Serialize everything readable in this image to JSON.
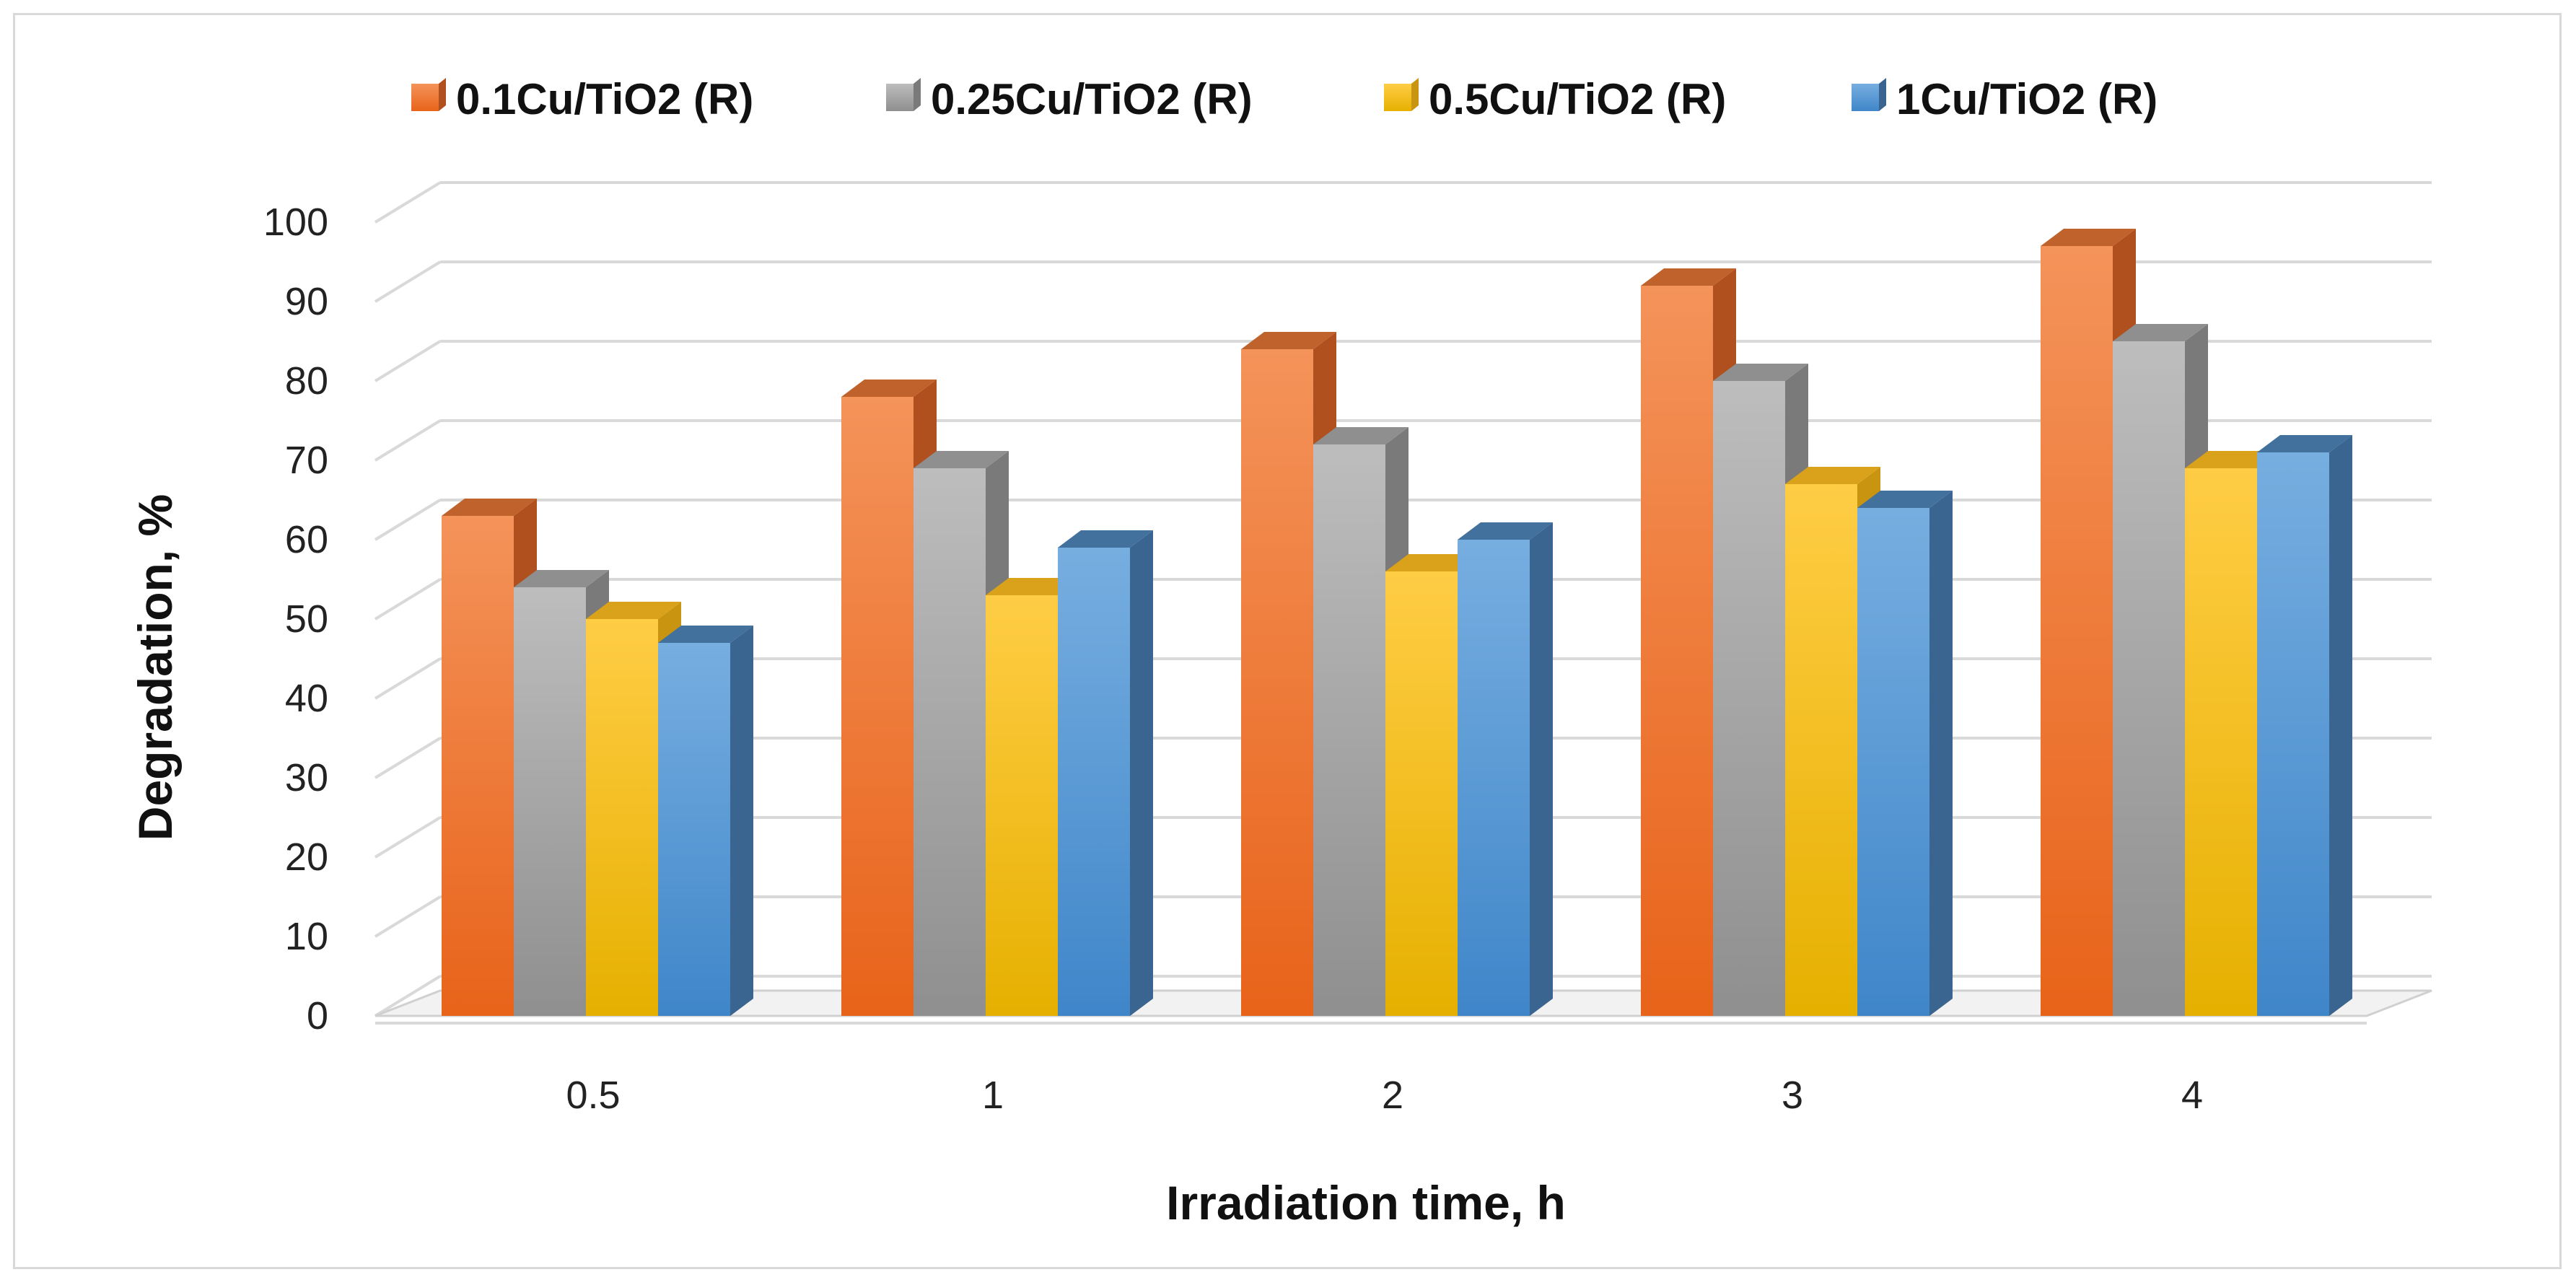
{
  "chart_data": {
    "type": "bar",
    "style": "3d-clustered-column",
    "categories": [
      "0.5",
      "1",
      "2",
      "3",
      "4"
    ],
    "series": [
      {
        "name": "0.1Cu/TiO2 (R)",
        "values": [
          63,
          78,
          84,
          92,
          97
        ],
        "color": "#ef7d2e",
        "top_color": "#c0622c",
        "side_color": "#b0501f"
      },
      {
        "name": "0.25Cu/TiO2 (R)",
        "values": [
          54,
          69,
          72,
          80,
          85
        ],
        "color": "#ababab",
        "top_color": "#8f8f8f",
        "side_color": "#7a7a7a"
      },
      {
        "name": "0.5Cu/TiO2 (R)",
        "values": [
          50,
          53,
          56,
          67,
          69
        ],
        "color": "#ffc21e",
        "top_color": "#d9a21a",
        "side_color": "#c99510"
      },
      {
        "name": "1Cu/TiO2 (R)",
        "values": [
          47,
          59,
          60,
          64,
          71
        ],
        "color": "#5b9bd5",
        "top_color": "#41719c",
        "side_color": "#3a6590"
      }
    ],
    "yticks": [
      "0",
      "10",
      "20",
      "30",
      "40",
      "50",
      "60",
      "70",
      "80",
      "90",
      "100"
    ],
    "ylim": [
      0,
      100
    ],
    "xlabel": "Irradiation time, h",
    "ylabel": "Degradation, %",
    "grid": true,
    "legend_position": "top"
  }
}
